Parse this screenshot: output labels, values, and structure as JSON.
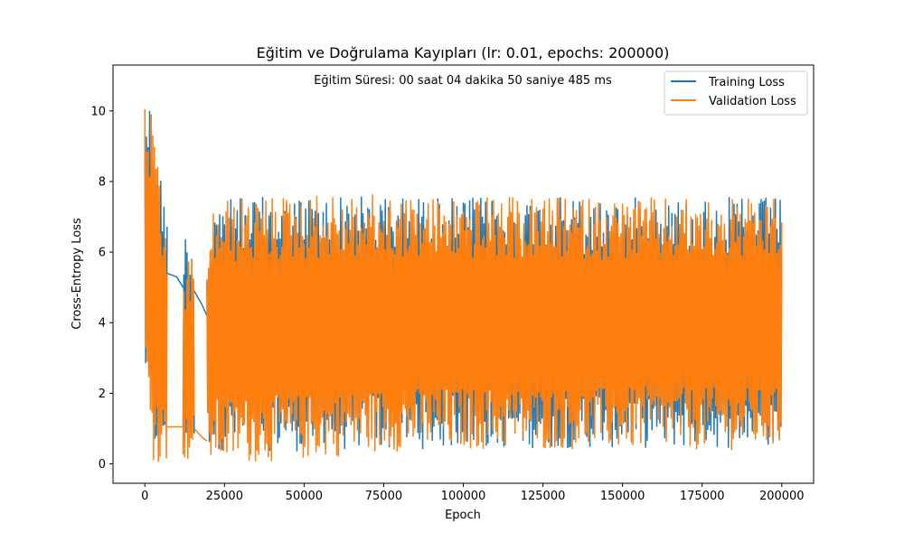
{
  "chart_data": {
    "type": "line",
    "title": "Eğitim ve Doğrulama Kayıpları (lr: 0.01, epochs: 200000)",
    "annotation": "Eğitim Süresi: 00 saat 04 dakika 50 saniye 485 ms",
    "xlabel": "Epoch",
    "ylabel": "Cross-Entropy Loss",
    "xlim": [
      -10000,
      210000
    ],
    "ylim": [
      -0.55,
      11.3
    ],
    "xticks": [
      0,
      25000,
      50000,
      75000,
      100000,
      125000,
      150000,
      175000,
      200000
    ],
    "yticks": [
      0,
      2,
      4,
      6,
      8,
      10
    ],
    "grid": false,
    "legend_position": "top-right",
    "series": [
      {
        "name": "Training Loss",
        "color": "#1f77b4",
        "envelope": [
          {
            "x": 0,
            "low": 2.5,
            "high": 10.75
          },
          {
            "x": 1500,
            "low": 0.8,
            "high": 10.4
          },
          {
            "x": 3000,
            "low": 0.3,
            "high": 9.5
          },
          {
            "x": 4500,
            "low": 0.3,
            "high": 8.5
          },
          {
            "x": 5500,
            "low": 0.4,
            "high": 7.95
          },
          {
            "x": 7000,
            "low": 0.5,
            "high": 7.45
          },
          {
            "x": 12000,
            "low": 0.4,
            "high": 6.65
          },
          {
            "x": 15500,
            "low": 0.4,
            "high": 6.4
          },
          {
            "x": 19500,
            "low": 0.5,
            "high": 5.95
          },
          {
            "x": 22000,
            "low": 0.4,
            "high": 7.5
          },
          {
            "x": 50000,
            "low": 0.35,
            "high": 7.62
          },
          {
            "x": 75000,
            "low": 0.4,
            "high": 7.6
          },
          {
            "x": 100000,
            "low": 0.45,
            "high": 7.55
          },
          {
            "x": 150000,
            "low": 0.45,
            "high": 7.55
          },
          {
            "x": 200000,
            "low": 0.45,
            "high": 7.55
          }
        ],
        "smooth_segments": [
          {
            "x": [
              7000,
              10000,
              12000
            ],
            "y": [
              5.4,
              5.3,
              5.0
            ]
          },
          {
            "x": [
              15500,
              18000,
              19500
            ],
            "y": [
              4.9,
              4.5,
              4.2
            ]
          }
        ]
      },
      {
        "name": "Validation Loss",
        "color": "#ff7f0e",
        "envelope": [
          {
            "x": 0,
            "low": 2.5,
            "high": 10.4
          },
          {
            "x": 1500,
            "low": 0.3,
            "high": 10.35
          },
          {
            "x": 3000,
            "low": 0.05,
            "high": 9.2
          },
          {
            "x": 4500,
            "low": 0.05,
            "high": 8.0
          },
          {
            "x": 5500,
            "low": 0.05,
            "high": 7.2
          },
          {
            "x": 7000,
            "low": 0.05,
            "high": 6.6
          },
          {
            "x": 12000,
            "low": 0.05,
            "high": 5.2
          },
          {
            "x": 15500,
            "low": 0.05,
            "high": 6.3
          },
          {
            "x": 19500,
            "low": 0.05,
            "high": 5.8
          },
          {
            "x": 22000,
            "low": 0.0,
            "high": 7.5
          },
          {
            "x": 50000,
            "low": 0.1,
            "high": 7.65
          },
          {
            "x": 75000,
            "low": 0.35,
            "high": 7.62
          },
          {
            "x": 100000,
            "low": 0.4,
            "high": 7.55
          },
          {
            "x": 150000,
            "low": 0.4,
            "high": 7.55
          },
          {
            "x": 200000,
            "low": 0.4,
            "high": 7.5
          }
        ],
        "smooth_segments": [
          {
            "x": [
              7000,
              10000,
              12000
            ],
            "y": [
              1.05,
              1.05,
              1.05
            ]
          },
          {
            "x": [
              15500,
              18000,
              19500
            ],
            "y": [
              1.0,
              0.75,
              0.65
            ]
          }
        ]
      }
    ]
  }
}
